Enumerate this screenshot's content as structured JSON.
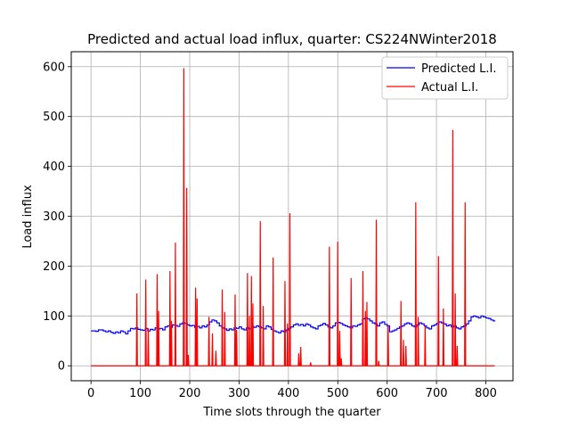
{
  "chart_data": {
    "type": "line",
    "title": "Predicted and actual load influx, quarter: CS224NWinter2018",
    "xlabel": "Time slots through the quarter",
    "ylabel": "Load influx",
    "xlim": [
      -40,
      855
    ],
    "ylim": [
      -30,
      630
    ],
    "x_ticks": [
      0,
      100,
      200,
      300,
      400,
      500,
      600,
      700,
      800
    ],
    "y_ticks": [
      0,
      100,
      200,
      300,
      400,
      500,
      600
    ],
    "grid": true,
    "legend_position": "top-right",
    "x_max": 818,
    "series": [
      {
        "name": "Predicted L.I.",
        "color": "#0000ff",
        "points": [
          [
            0,
            70
          ],
          [
            10,
            69
          ],
          [
            15,
            72
          ],
          [
            25,
            70
          ],
          [
            30,
            68
          ],
          [
            35,
            70
          ],
          [
            40,
            67
          ],
          [
            45,
            65
          ],
          [
            50,
            68
          ],
          [
            55,
            66
          ],
          [
            60,
            70
          ],
          [
            65,
            68
          ],
          [
            70,
            64
          ],
          [
            75,
            70
          ],
          [
            80,
            75
          ],
          [
            85,
            74
          ],
          [
            90,
            76
          ],
          [
            95,
            73
          ],
          [
            100,
            72
          ],
          [
            105,
            71
          ],
          [
            110,
            75
          ],
          [
            115,
            70
          ],
          [
            120,
            73
          ],
          [
            125,
            72
          ],
          [
            130,
            76
          ],
          [
            135,
            74
          ],
          [
            140,
            75
          ],
          [
            145,
            72
          ],
          [
            150,
            78
          ],
          [
            155,
            80
          ],
          [
            160,
            77
          ],
          [
            165,
            82
          ],
          [
            170,
            81
          ],
          [
            175,
            79
          ],
          [
            180,
            84
          ],
          [
            185,
            86
          ],
          [
            190,
            85
          ],
          [
            195,
            82
          ],
          [
            200,
            80
          ],
          [
            205,
            81
          ],
          [
            210,
            77
          ],
          [
            215,
            79
          ],
          [
            220,
            76
          ],
          [
            225,
            80
          ],
          [
            230,
            78
          ],
          [
            235,
            82
          ],
          [
            240,
            88
          ],
          [
            245,
            92
          ],
          [
            250,
            90
          ],
          [
            255,
            86
          ],
          [
            260,
            80
          ],
          [
            265,
            76
          ],
          [
            270,
            74
          ],
          [
            275,
            71
          ],
          [
            280,
            74
          ],
          [
            285,
            72
          ],
          [
            290,
            76
          ],
          [
            295,
            75
          ],
          [
            300,
            78
          ],
          [
            305,
            74
          ],
          [
            310,
            72
          ],
          [
            315,
            76
          ],
          [
            320,
            74
          ],
          [
            325,
            79
          ],
          [
            330,
            77
          ],
          [
            335,
            80
          ],
          [
            340,
            78
          ],
          [
            345,
            76
          ],
          [
            350,
            74
          ],
          [
            355,
            80
          ],
          [
            360,
            78
          ],
          [
            365,
            73
          ],
          [
            370,
            70
          ],
          [
            375,
            68
          ],
          [
            380,
            66
          ],
          [
            385,
            70
          ],
          [
            390,
            68
          ],
          [
            395,
            72
          ],
          [
            400,
            75
          ],
          [
            405,
            78
          ],
          [
            410,
            82
          ],
          [
            415,
            84
          ],
          [
            420,
            81
          ],
          [
            425,
            83
          ],
          [
            430,
            80
          ],
          [
            435,
            84
          ],
          [
            440,
            82
          ],
          [
            445,
            78
          ],
          [
            450,
            76
          ],
          [
            455,
            74
          ],
          [
            460,
            80
          ],
          [
            465,
            82
          ],
          [
            470,
            85
          ],
          [
            475,
            82
          ],
          [
            480,
            78
          ],
          [
            485,
            76
          ],
          [
            490,
            80
          ],
          [
            495,
            86
          ],
          [
            500,
            87
          ],
          [
            505,
            85
          ],
          [
            510,
            82
          ],
          [
            515,
            80
          ],
          [
            520,
            78
          ],
          [
            525,
            76
          ],
          [
            530,
            80
          ],
          [
            535,
            79
          ],
          [
            540,
            82
          ],
          [
            545,
            84
          ],
          [
            550,
            94
          ],
          [
            555,
            96
          ],
          [
            560,
            94
          ],
          [
            565,
            90
          ],
          [
            570,
            86
          ],
          [
            575,
            84
          ],
          [
            580,
            80
          ],
          [
            585,
            86
          ],
          [
            590,
            88
          ],
          [
            595,
            83
          ],
          [
            600,
            80
          ],
          [
            605,
            68
          ],
          [
            610,
            70
          ],
          [
            615,
            72
          ],
          [
            620,
            75
          ],
          [
            625,
            78
          ],
          [
            630,
            80
          ],
          [
            635,
            84
          ],
          [
            640,
            86
          ],
          [
            645,
            84
          ],
          [
            650,
            80
          ],
          [
            655,
            78
          ],
          [
            660,
            82
          ],
          [
            665,
            86
          ],
          [
            670,
            84
          ],
          [
            675,
            80
          ],
          [
            680,
            76
          ],
          [
            685,
            74
          ],
          [
            690,
            80
          ],
          [
            695,
            82
          ],
          [
            700,
            85
          ],
          [
            705,
            88
          ],
          [
            710,
            86
          ],
          [
            715,
            84
          ],
          [
            720,
            80
          ],
          [
            725,
            82
          ],
          [
            730,
            78
          ],
          [
            735,
            80
          ],
          [
            740,
            76
          ],
          [
            745,
            74
          ],
          [
            750,
            78
          ],
          [
            755,
            80
          ],
          [
            760,
            84
          ],
          [
            765,
            90
          ],
          [
            770,
            98
          ],
          [
            775,
            100
          ],
          [
            780,
            98
          ],
          [
            785,
            96
          ],
          [
            790,
            100
          ],
          [
            795,
            98
          ],
          [
            800,
            96
          ],
          [
            805,
            95
          ],
          [
            810,
            92
          ],
          [
            815,
            90
          ],
          [
            818,
            89
          ]
        ]
      },
      {
        "name": "Actual L.I.",
        "color": "#ff0000",
        "baseline_end": 818,
        "spikes": [
          [
            93,
            145
          ],
          [
            111,
            173
          ],
          [
            116,
            75
          ],
          [
            134,
            184
          ],
          [
            137,
            110
          ],
          [
            160,
            190
          ],
          [
            163,
            90
          ],
          [
            171,
            247
          ],
          [
            188,
            597
          ],
          [
            194,
            357
          ],
          [
            197,
            22
          ],
          [
            212,
            157
          ],
          [
            215,
            135
          ],
          [
            239,
            98
          ],
          [
            246,
            65
          ],
          [
            253,
            30
          ],
          [
            266,
            153
          ],
          [
            271,
            108
          ],
          [
            292,
            143
          ],
          [
            295,
            72
          ],
          [
            317,
            186
          ],
          [
            321,
            100
          ],
          [
            325,
            180
          ],
          [
            328,
            125
          ],
          [
            343,
            290
          ],
          [
            349,
            120
          ],
          [
            369,
            217
          ],
          [
            393,
            170
          ],
          [
            398,
            85
          ],
          [
            403,
            306
          ],
          [
            421,
            25
          ],
          [
            425,
            38
          ],
          [
            445,
            7
          ],
          [
            483,
            239
          ],
          [
            500,
            249
          ],
          [
            504,
            70
          ],
          [
            507,
            15
          ],
          [
            527,
            176
          ],
          [
            551,
            190
          ],
          [
            556,
            110
          ],
          [
            559,
            128
          ],
          [
            578,
            293
          ],
          [
            583,
            10
          ],
          [
            602,
            82
          ],
          [
            628,
            130
          ],
          [
            633,
            52
          ],
          [
            638,
            40
          ],
          [
            658,
            328
          ],
          [
            663,
            98
          ],
          [
            677,
            80
          ],
          [
            704,
            220
          ],
          [
            714,
            115
          ],
          [
            733,
            473
          ],
          [
            738,
            145
          ],
          [
            742,
            40
          ],
          [
            758,
            328
          ]
        ]
      }
    ]
  }
}
